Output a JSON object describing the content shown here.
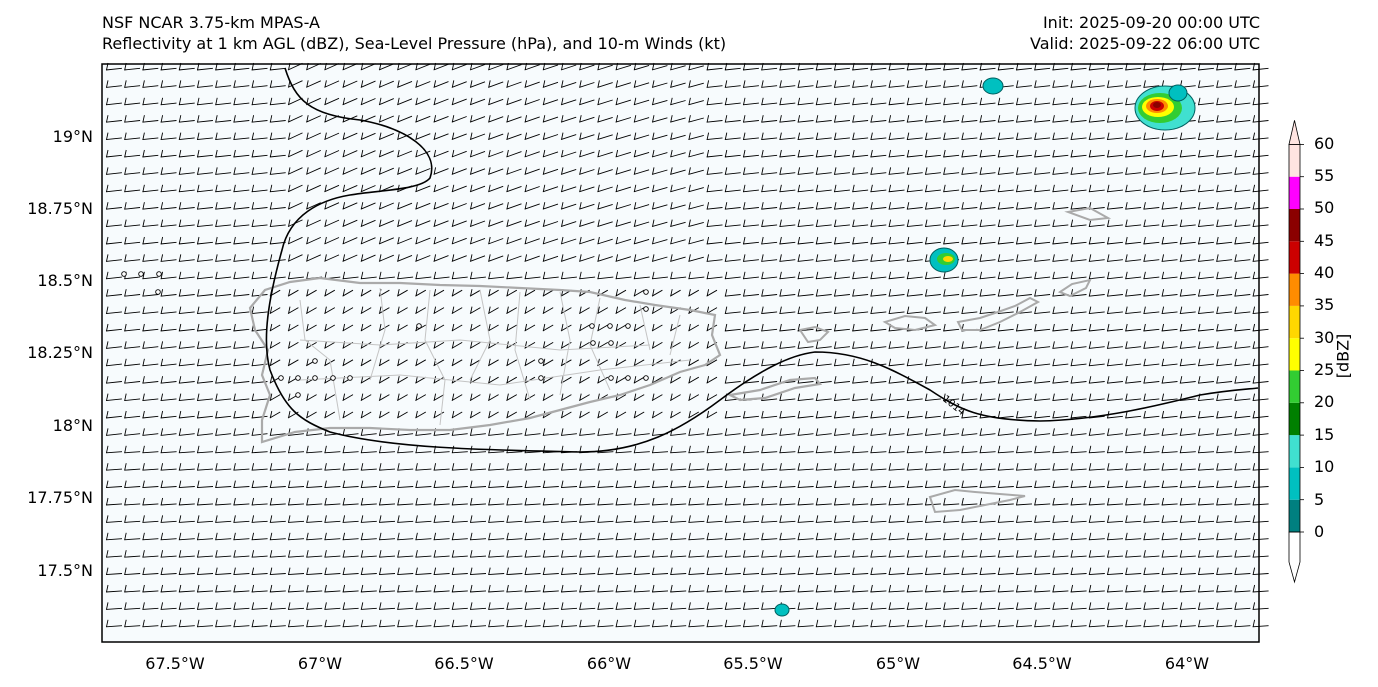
{
  "title": {
    "model": "NSF NCAR 3.75-km MPAS-A",
    "fields": "Reflectivity at 1 km AGL (dBZ), Sea-Level Pressure (hPa), and 10-m Winds (kt)",
    "init": "Init: 2025-09-20 00:00 UTC",
    "valid": "Valid: 2025-09-22 06:00 UTC"
  },
  "axes": {
    "lat_labels": [
      "19°N",
      "18.75°N",
      "18.5°N",
      "18.25°N",
      "18°N",
      "17.75°N",
      "17.5°N"
    ],
    "lat_values": [
      19.0,
      18.75,
      18.5,
      18.25,
      18.0,
      17.75,
      17.5
    ],
    "lon_labels": [
      "67.5°W",
      "67°W",
      "66.5°W",
      "66°W",
      "65.5°W",
      "65°W",
      "64.5°W",
      "64°W"
    ],
    "lon_values": [
      -67.5,
      -67.0,
      -66.5,
      -66.0,
      -65.5,
      -65.0,
      -64.5,
      -64.0
    ],
    "extent": {
      "lon_min": -67.75,
      "lon_max": -63.75,
      "lat_min": 17.25,
      "lat_max": 19.25
    }
  },
  "contours": {
    "slp_label": "1014"
  },
  "colorbar": {
    "unit": "[dBZ]",
    "tick_labels": [
      "0",
      "5",
      "10",
      "15",
      "20",
      "25",
      "30",
      "35",
      "40",
      "45",
      "50",
      "55",
      "60"
    ],
    "colors": [
      "#008080",
      "#00c0c0",
      "#40e0d0",
      "#008000",
      "#32cd32",
      "#ffff00",
      "#ffd700",
      "#ff8c00",
      "#cc0000",
      "#8b0000",
      "#ff00ff",
      "#ffe4e1"
    ]
  },
  "colors": {
    "coast": "#aaaaaa",
    "ocean": "#f7fbfd",
    "barb": "#000000"
  }
}
